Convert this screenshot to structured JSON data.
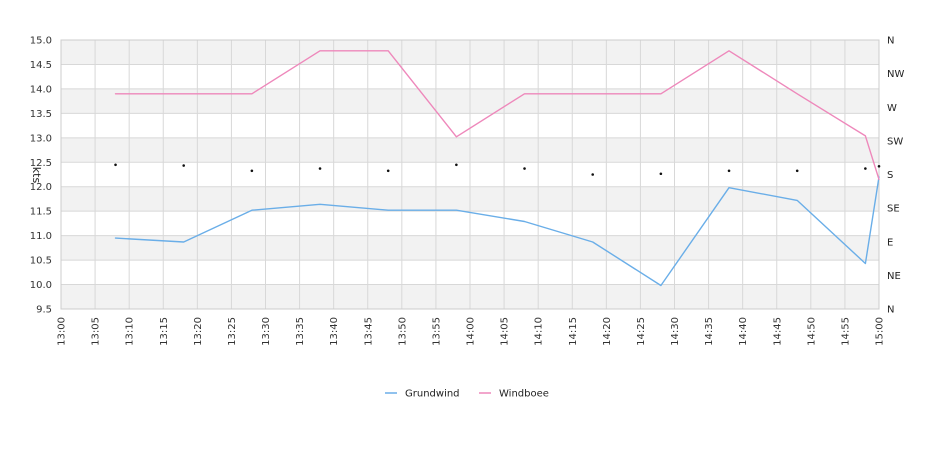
{
  "chart_data": {
    "type": "line",
    "ylabel": "kts",
    "ylim": [
      9.5,
      15.0
    ],
    "y_ticks": [
      "9.5",
      "10.0",
      "10.5",
      "11.0",
      "11.5",
      "12.0",
      "12.5",
      "13.0",
      "13.5",
      "14.0",
      "14.5",
      "15.0"
    ],
    "x_ticks": [
      "13:00",
      "13:05",
      "13:10",
      "13:15",
      "13:20",
      "13:25",
      "13:30",
      "13:35",
      "13:40",
      "13:45",
      "13:50",
      "13:55",
      "14:00",
      "14:05",
      "14:10",
      "14:15",
      "14:20",
      "14:25",
      "14:30",
      "14:35",
      "14:40",
      "14:45",
      "14:50",
      "14:55",
      "15:00"
    ],
    "xlim": [
      "13:00",
      "15:00"
    ],
    "direction_axis": {
      "labels": [
        "N",
        "NE",
        "E",
        "SE",
        "S",
        "SW",
        "W",
        "NW",
        "N"
      ],
      "range_degrees": [
        0,
        360
      ],
      "position": "right"
    },
    "grid": true,
    "legend_position": "bottom-center",
    "series": [
      {
        "name": "Grundwind",
        "color": "#6aaee8",
        "x": [
          "13:08",
          "13:18",
          "13:28",
          "13:38",
          "13:48",
          "13:58",
          "14:08",
          "14:18",
          "14:28",
          "14:38",
          "14:48",
          "14:58",
          "15:00"
        ],
        "values": [
          10.95,
          10.87,
          11.52,
          11.64,
          11.52,
          11.52,
          11.29,
          10.87,
          9.98,
          11.98,
          11.72,
          10.43,
          12.2
        ]
      },
      {
        "name": "Windboee",
        "color": "#ee88bb",
        "x": [
          "13:08",
          "13:18",
          "13:28",
          "13:38",
          "13:48",
          "13:58",
          "14:08",
          "14:18",
          "14:28",
          "14:38",
          "14:48",
          "14:58",
          "15:00"
        ],
        "values": [
          13.9,
          13.9,
          13.9,
          14.78,
          14.78,
          13.02,
          13.9,
          13.9,
          13.9,
          14.78,
          13.9,
          13.04,
          12.15
        ]
      }
    ],
    "wind_direction": {
      "x": [
        "13:08",
        "13:18",
        "13:28",
        "13:38",
        "13:48",
        "13:58",
        "14:08",
        "14:18",
        "14:28",
        "14:38",
        "14:48",
        "14:58",
        "15:00"
      ],
      "degrees": [
        193,
        192,
        185,
        188,
        185,
        193,
        188,
        180,
        181,
        185,
        185,
        188,
        191
      ]
    }
  }
}
